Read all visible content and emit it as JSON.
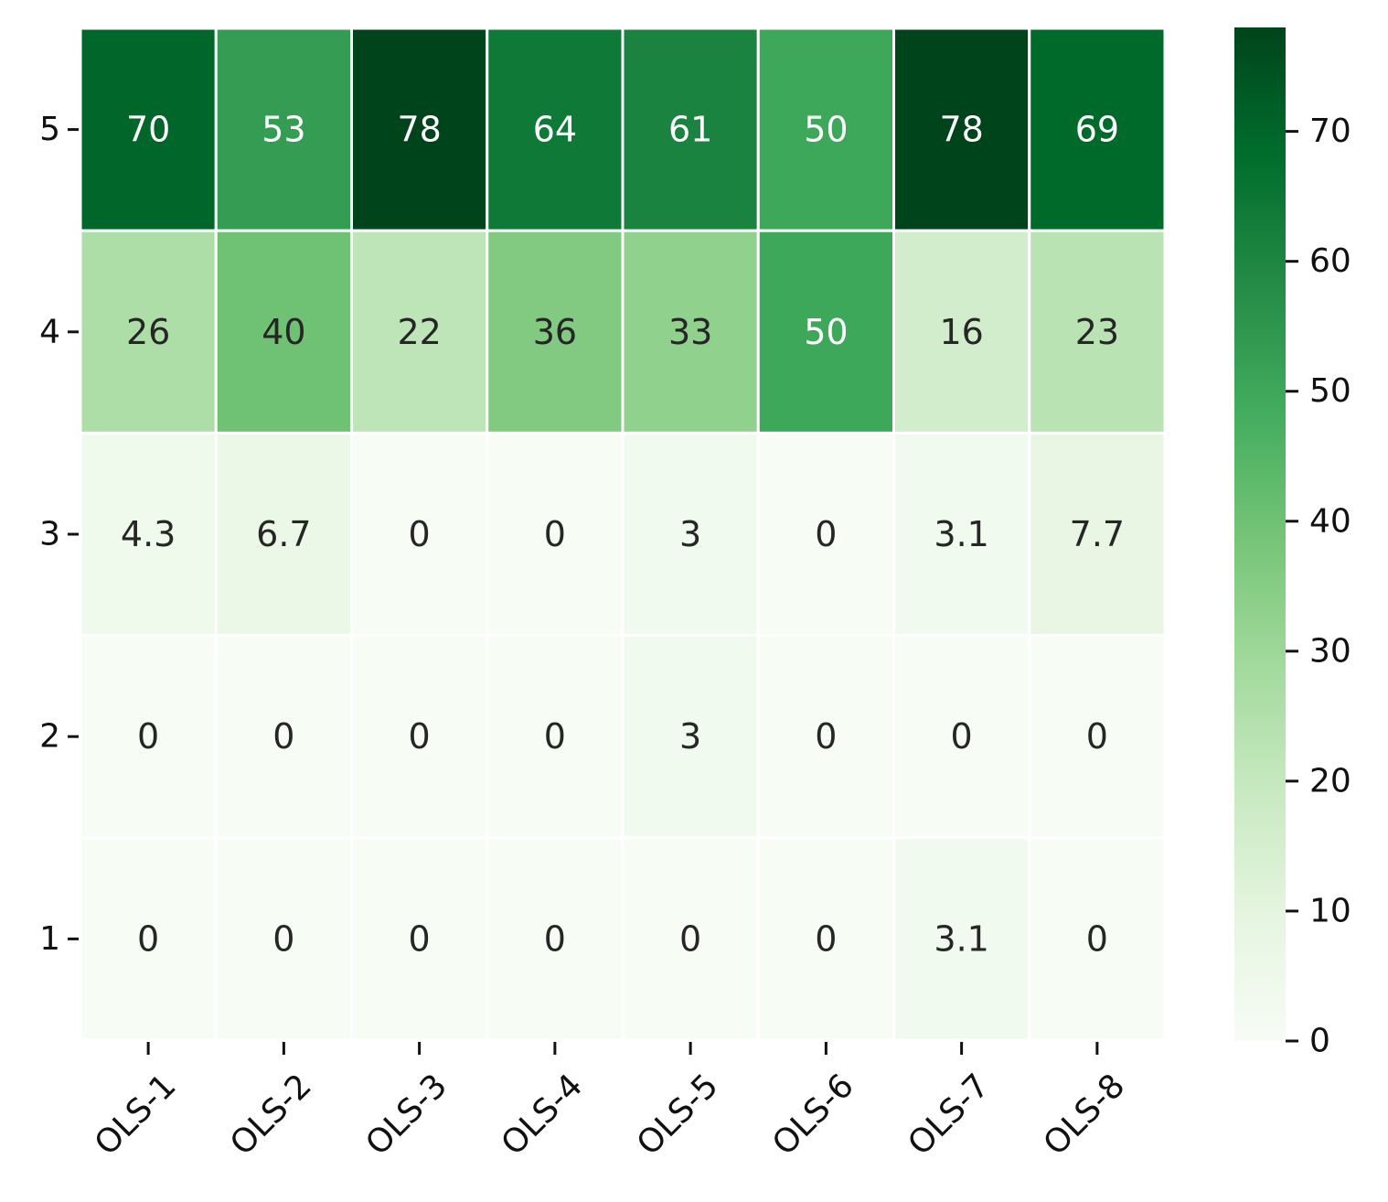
{
  "chart_data": {
    "type": "heatmap",
    "title": "",
    "xlabel": "",
    "ylabel": "",
    "x_categories": [
      "OLS-1",
      "OLS-2",
      "OLS-3",
      "OLS-4",
      "OLS-5",
      "OLS-6",
      "OLS-7",
      "OLS-8"
    ],
    "y_categories": [
      "5",
      "4",
      "3",
      "2",
      "1"
    ],
    "values": [
      [
        70,
        53,
        78,
        64,
        61,
        50,
        78,
        69
      ],
      [
        26,
        40,
        22,
        36,
        33,
        50,
        16,
        23
      ],
      [
        4.3,
        6.7,
        0,
        0,
        3,
        0,
        3.1,
        7.7
      ],
      [
        0,
        0,
        0,
        0,
        3,
        0,
        0,
        0
      ],
      [
        0,
        0,
        0,
        0,
        0,
        0,
        3.1,
        0
      ]
    ],
    "colorbar": {
      "min": 0,
      "max": 78,
      "ticks": [
        0,
        10,
        20,
        30,
        40,
        50,
        60,
        70
      ]
    },
    "colormap": "Greens",
    "cell_border_color": "#ffffff"
  }
}
